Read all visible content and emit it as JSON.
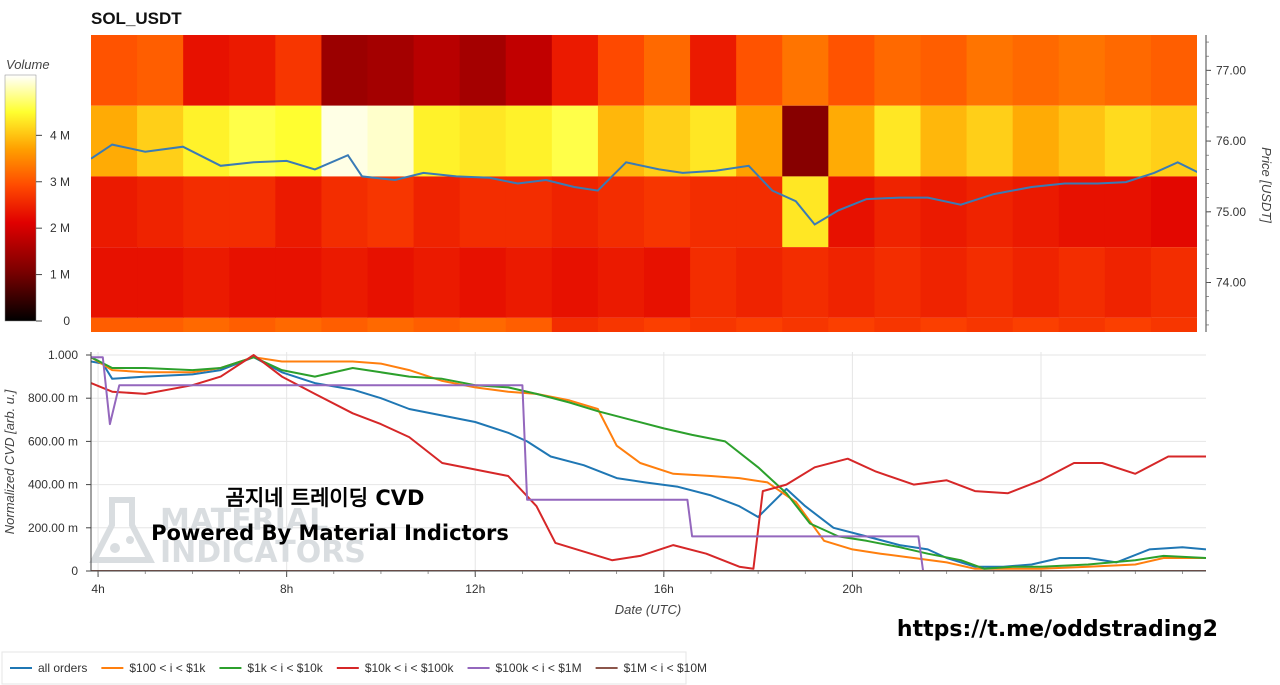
{
  "colors": {
    "all_orders": "#1f77b4",
    "b100_1k": "#ff7f0e",
    "b1k_10k": "#2ca02c",
    "b10k_100k": "#d62728",
    "b100k_1m": "#9467bd",
    "b1m_10m": "#8c564b"
  },
  "overlay": {
    "korean": "곰지네 트레이딩 CVD",
    "powered": "Powered By Material Indictors",
    "wm_line1": "MATERIAL",
    "wm_line2": "INDICATORS",
    "link": "https://t.me/oddstrading2"
  },
  "chart_data": [
    {
      "type": "heatmap",
      "title": "SOL_USDT",
      "colorbar": {
        "label": "Volume",
        "range": [
          0,
          5.3
        ],
        "ticks": [
          "0",
          "1 M",
          "2 M",
          "3 M",
          "4 M"
        ]
      },
      "ylabel": "Price [USDT]",
      "ylim": [
        73.3,
        77.5
      ],
      "yticks": [
        "74.00",
        "75.00",
        "76.00",
        "77.00"
      ],
      "bands": [
        {
          "price_low": 76.5,
          "price_high": 77.5,
          "volume_m": [
            3.0,
            3.1,
            2.3,
            2.4,
            2.7,
            1.4,
            1.5,
            1.7,
            1.5,
            1.8,
            2.4,
            2.9,
            3.2,
            2.4,
            3.0,
            3.3,
            3.0,
            3.2,
            3.1,
            3.3,
            3.2,
            3.3,
            3.2,
            3.1
          ]
        },
        {
          "price_low": 75.5,
          "price_high": 76.5,
          "volume_m": [
            3.8,
            4.1,
            4.4,
            4.6,
            4.5,
            5.2,
            5.1,
            4.4,
            4.3,
            4.4,
            4.6,
            3.9,
            4.1,
            4.3,
            3.7,
            1.2,
            3.8,
            4.3,
            3.9,
            4.1,
            3.8,
            4.0,
            4.2,
            4.1
          ]
        },
        {
          "price_low": 74.5,
          "price_high": 75.5,
          "volume_m": [
            2.4,
            2.5,
            2.6,
            2.6,
            2.4,
            2.6,
            2.7,
            2.5,
            2.6,
            2.6,
            2.5,
            2.6,
            2.7,
            2.6,
            2.6,
            4.3,
            2.3,
            2.5,
            2.4,
            2.5,
            2.4,
            2.3,
            2.3,
            2.2
          ]
        },
        {
          "price_low": 73.5,
          "price_high": 74.5,
          "volume_m": [
            2.3,
            2.3,
            2.4,
            2.3,
            2.3,
            2.4,
            2.3,
            2.4,
            2.3,
            2.4,
            2.3,
            2.4,
            2.3,
            2.6,
            2.5,
            2.6,
            2.5,
            2.6,
            2.5,
            2.6,
            2.5,
            2.6,
            2.5,
            2.6
          ]
        },
        {
          "price_low": 73.3,
          "price_high": 73.5,
          "volume_m": [
            3.1,
            3.1,
            3.2,
            3.1,
            3.2,
            3.1,
            3.2,
            3.1,
            3.2,
            3.1,
            2.6,
            2.7,
            2.8,
            2.7,
            2.8,
            2.7,
            2.8,
            2.7,
            2.8,
            2.7,
            2.8,
            2.7,
            2.8,
            2.7
          ]
        }
      ],
      "time_range_hours": [
        3.85,
        27.5
      ],
      "price_line": {
        "t": [
          3.85,
          4.3,
          5.0,
          5.8,
          6.6,
          7.3,
          8.0,
          8.6,
          9.3,
          9.6,
          10.3,
          10.9,
          11.6,
          12.3,
          12.9,
          13.5,
          14.1,
          14.6,
          15.2,
          15.9,
          16.4,
          17.1,
          17.8,
          18.3,
          18.8,
          19.2,
          19.7,
          20.3,
          21.0,
          21.6,
          22.3,
          23.0,
          23.8,
          24.5,
          25.2,
          25.8,
          26.4,
          26.9,
          27.5
        ],
        "price": [
          75.75,
          75.95,
          75.85,
          75.92,
          75.65,
          75.7,
          75.72,
          75.6,
          75.8,
          75.5,
          75.45,
          75.55,
          75.5,
          75.48,
          75.4,
          75.45,
          75.35,
          75.3,
          75.7,
          75.6,
          75.55,
          75.58,
          75.65,
          75.3,
          75.15,
          74.82,
          75.02,
          75.18,
          75.2,
          75.2,
          75.1,
          75.25,
          75.35,
          75.4,
          75.4,
          75.42,
          75.55,
          75.7,
          75.5
        ]
      }
    },
    {
      "type": "line",
      "xlabel": "Date (UTC)",
      "ylabel": "Normalized CVD [arb. u.]",
      "ylim": [
        0,
        1.0
      ],
      "yticks": [
        "0",
        "200.00 m",
        "400.00 m",
        "600.00 m",
        "800.00 m",
        "1.000"
      ],
      "xticks": [
        {
          "t": 4,
          "label": "4h"
        },
        {
          "t": 8,
          "label": "8h"
        },
        {
          "t": 12,
          "label": "12h"
        },
        {
          "t": 16,
          "label": "16h"
        },
        {
          "t": 20,
          "label": "20h"
        },
        {
          "t": 24,
          "label": "8/15"
        }
      ],
      "xlim": [
        3.85,
        27.5
      ],
      "series": [
        {
          "name": "all orders",
          "key": "all_orders",
          "t": [
            3.85,
            4.1,
            4.3,
            5.0,
            6.0,
            6.6,
            7.3,
            7.9,
            8.6,
            9.4,
            10.0,
            10.6,
            11.3,
            12.0,
            12.7,
            13.1,
            13.6,
            14.3,
            15.0,
            15.6,
            16.3,
            17.0,
            17.6,
            18.0,
            18.6,
            19.0,
            19.6,
            20.3,
            21.0,
            21.6,
            22.0,
            22.6,
            23.2,
            23.8,
            24.4,
            25.0,
            25.6,
            26.3,
            27.0,
            27.5
          ],
          "y": [
            0.97,
            0.96,
            0.89,
            0.9,
            0.91,
            0.93,
            0.99,
            0.92,
            0.87,
            0.84,
            0.8,
            0.75,
            0.72,
            0.69,
            0.64,
            0.6,
            0.53,
            0.49,
            0.43,
            0.41,
            0.39,
            0.35,
            0.3,
            0.25,
            0.38,
            0.3,
            0.2,
            0.16,
            0.12,
            0.1,
            0.06,
            0.02,
            0.02,
            0.03,
            0.06,
            0.06,
            0.04,
            0.1,
            0.11,
            0.1
          ]
        },
        {
          "name": "$100 < i < $1k",
          "key": "b100_1k",
          "t": [
            3.85,
            4.3,
            5.0,
            6.0,
            6.6,
            7.3,
            7.9,
            8.6,
            9.4,
            10.0,
            10.6,
            11.3,
            12.0,
            12.7,
            13.3,
            14.0,
            14.6,
            15.0,
            15.5,
            16.2,
            17.0,
            17.6,
            18.2,
            18.8,
            19.4,
            20.0,
            20.6,
            21.3,
            22.0,
            22.6,
            23.2,
            24.0,
            25.0,
            26.0,
            26.6,
            27.5
          ],
          "y": [
            0.99,
            0.93,
            0.92,
            0.92,
            0.94,
            0.99,
            0.97,
            0.97,
            0.97,
            0.96,
            0.93,
            0.88,
            0.85,
            0.83,
            0.82,
            0.79,
            0.75,
            0.58,
            0.5,
            0.45,
            0.44,
            0.43,
            0.41,
            0.32,
            0.14,
            0.1,
            0.08,
            0.06,
            0.04,
            0.01,
            0.01,
            0.01,
            0.02,
            0.03,
            0.06,
            0.06
          ]
        },
        {
          "name": "$1k < i < $10k",
          "key": "b1k_10k",
          "t": [
            3.85,
            4.3,
            5.0,
            6.0,
            6.6,
            7.3,
            7.9,
            8.6,
            9.4,
            10.0,
            10.6,
            11.3,
            12.0,
            12.7,
            13.3,
            14.0,
            14.6,
            15.3,
            16.0,
            16.6,
            17.3,
            18.0,
            18.6,
            19.1,
            19.7,
            20.3,
            21.0,
            21.6,
            22.3,
            22.8,
            23.4,
            24.0,
            25.0,
            26.0,
            26.6,
            27.5
          ],
          "y": [
            0.99,
            0.94,
            0.94,
            0.93,
            0.94,
            0.99,
            0.93,
            0.9,
            0.94,
            0.92,
            0.9,
            0.89,
            0.86,
            0.85,
            0.82,
            0.78,
            0.74,
            0.7,
            0.66,
            0.63,
            0.6,
            0.48,
            0.36,
            0.22,
            0.16,
            0.14,
            0.11,
            0.08,
            0.05,
            0.01,
            0.02,
            0.02,
            0.03,
            0.05,
            0.07,
            0.06
          ]
        },
        {
          "name": "$10k < i < $100k",
          "key": "b10k_100k",
          "t": [
            3.85,
            4.3,
            5.0,
            6.0,
            6.6,
            7.3,
            7.9,
            8.6,
            9.4,
            10.0,
            10.6,
            11.3,
            12.0,
            12.7,
            13.3,
            13.7,
            14.3,
            14.9,
            15.5,
            16.2,
            16.9,
            17.6,
            17.9,
            18.1,
            18.6,
            19.2,
            19.9,
            20.5,
            21.3,
            22.0,
            22.6,
            23.3,
            24.0,
            24.7,
            25.3,
            26.0,
            26.7,
            27.5
          ],
          "y": [
            0.87,
            0.83,
            0.82,
            0.86,
            0.9,
            1.0,
            0.9,
            0.82,
            0.73,
            0.68,
            0.62,
            0.5,
            0.47,
            0.44,
            0.3,
            0.13,
            0.09,
            0.05,
            0.07,
            0.12,
            0.08,
            0.02,
            0.01,
            0.37,
            0.4,
            0.48,
            0.52,
            0.46,
            0.4,
            0.42,
            0.37,
            0.36,
            0.42,
            0.5,
            0.5,
            0.45,
            0.53,
            0.53
          ]
        },
        {
          "name": "$100k < i < $1M",
          "key": "b100k_1m",
          "t": [
            3.85,
            4.1,
            4.25,
            4.45,
            13.0,
            13.1,
            16.5,
            16.6,
            21.4,
            21.5,
            27.5
          ],
          "y": [
            0.99,
            0.99,
            0.68,
            0.86,
            0.86,
            0.33,
            0.33,
            0.16,
            0.16,
            0.0,
            0.0
          ]
        },
        {
          "name": "$1M < i < $10M",
          "key": "b1m_10m",
          "t": [
            3.85,
            27.5
          ],
          "y": [
            0.0,
            0.0
          ]
        }
      ]
    }
  ]
}
